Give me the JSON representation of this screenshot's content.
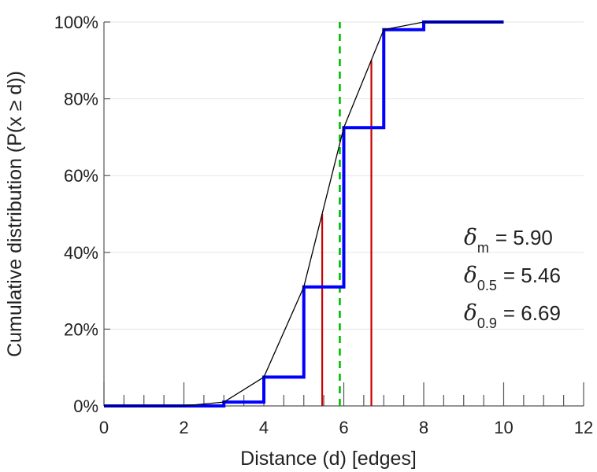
{
  "chart_data": {
    "type": "line",
    "title": "",
    "xlabel": "Distance (d) [edges]",
    "ylabel": "Cumulative distribution (P(x ≥ d))",
    "xlim": [
      0,
      12
    ],
    "ylim": [
      0,
      100
    ],
    "x_ticks": [
      0,
      2,
      4,
      6,
      8,
      10,
      12
    ],
    "x_tick_labels": [
      "0",
      "2",
      "4",
      "6",
      "8",
      "10",
      "12"
    ],
    "y_ticks": [
      0,
      20,
      40,
      60,
      80,
      100
    ],
    "y_tick_labels": [
      "0%",
      "20%",
      "40%",
      "60%",
      "80%",
      "100%"
    ],
    "grid": "horizontal",
    "series": [
      {
        "style": "step",
        "color": "#0000ff",
        "x": [
          0,
          1,
          2,
          3,
          4,
          5,
          6,
          7,
          8,
          9,
          10
        ],
        "y": [
          0,
          0,
          0,
          1,
          7.5,
          31,
          72.5,
          98,
          100,
          100,
          100
        ]
      },
      {
        "style": "line",
        "color": "#000000",
        "x": [
          0,
          1,
          2,
          3,
          4,
          5,
          6,
          7,
          8,
          9,
          10
        ],
        "y": [
          0,
          0,
          0,
          1,
          7.5,
          31,
          72.5,
          98,
          100,
          100,
          100
        ]
      }
    ],
    "vlines": [
      {
        "x": 5.46,
        "y_top": 50,
        "color": "#cc0000",
        "dash": false
      },
      {
        "x": 6.69,
        "y_top": 90,
        "color": "#cc0000",
        "dash": false
      },
      {
        "x": 5.9,
        "y_top": 100,
        "color": "#00bb00",
        "dash": true
      }
    ],
    "annotations": [
      {
        "symbol": "δ",
        "sub": "m",
        "text": "= 5.90"
      },
      {
        "symbol": "δ",
        "sub": "0.5",
        "text": "= 5.46"
      },
      {
        "symbol": "δ",
        "sub": "0.9",
        "text": "= 6.69"
      }
    ]
  }
}
